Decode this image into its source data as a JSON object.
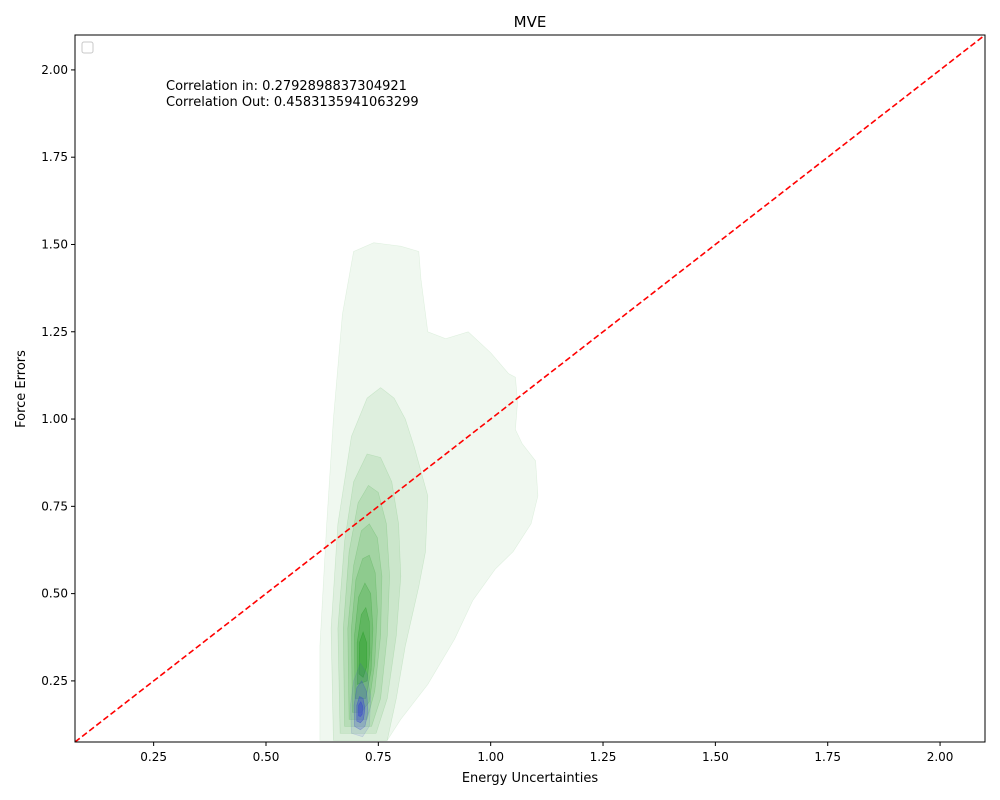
{
  "chart_data": {
    "type": "kde-contour",
    "title": "MVE",
    "xlabel": "Energy Uncertainties",
    "ylabel": "Force Errors",
    "xlim": [
      0.075,
      2.1
    ],
    "ylim": [
      0.075,
      2.1
    ],
    "xticks": [
      0.25,
      0.5,
      0.75,
      1.0,
      1.25,
      1.5,
      1.75,
      2.0
    ],
    "yticks": [
      0.25,
      0.5,
      0.75,
      1.0,
      1.25,
      1.5,
      1.75,
      2.0
    ],
    "xtick_labels": [
      "0.25",
      "0.50",
      "0.75",
      "1.00",
      "1.25",
      "1.50",
      "1.75",
      "2.00"
    ],
    "ytick_labels": [
      "0.25",
      "0.50",
      "0.75",
      "1.00",
      "1.25",
      "1.50",
      "1.75",
      "2.00"
    ],
    "annotations": [
      "Correlation in: 0.2792898837304921",
      "Correlation Out: 0.4583135941063299"
    ],
    "reference_line": {
      "x": [
        0.075,
        2.1
      ],
      "y": [
        0.075,
        2.1
      ],
      "color": "#ff0000",
      "style": "dashed"
    },
    "grid": false,
    "legend": {
      "placement": "top-left",
      "entries": []
    },
    "series": [
      {
        "color": "#2ca02c",
        "levels": [
          {
            "alpha": 0.07,
            "points": [
              [
                0.62,
                0.08
              ],
              [
                0.62,
                0.35
              ],
              [
                0.635,
                0.7
              ],
              [
                0.65,
                1.0
              ],
              [
                0.67,
                1.3
              ],
              [
                0.695,
                1.48
              ],
              [
                0.74,
                1.505
              ],
              [
                0.8,
                1.495
              ],
              [
                0.84,
                1.48
              ],
              [
                0.845,
                1.4
              ],
              [
                0.86,
                1.25
              ],
              [
                0.9,
                1.23
              ],
              [
                0.95,
                1.25
              ],
              [
                1.0,
                1.19
              ],
              [
                1.04,
                1.13
              ],
              [
                1.055,
                1.12
              ],
              [
                1.06,
                1.05
              ],
              [
                1.055,
                0.97
              ],
              [
                1.07,
                0.93
              ],
              [
                1.1,
                0.88
              ],
              [
                1.105,
                0.78
              ],
              [
                1.09,
                0.7
              ],
              [
                1.05,
                0.62
              ],
              [
                1.01,
                0.57
              ],
              [
                0.96,
                0.48
              ],
              [
                0.92,
                0.37
              ],
              [
                0.86,
                0.24
              ],
              [
                0.8,
                0.14
              ],
              [
                0.77,
                0.08
              ]
            ]
          },
          {
            "alpha": 0.09,
            "points": [
              [
                0.65,
                0.08
              ],
              [
                0.645,
                0.4
              ],
              [
                0.66,
                0.7
              ],
              [
                0.69,
                0.95
              ],
              [
                0.725,
                1.06
              ],
              [
                0.755,
                1.09
              ],
              [
                0.785,
                1.06
              ],
              [
                0.81,
                1.0
              ],
              [
                0.83,
                0.92
              ],
              [
                0.86,
                0.78
              ],
              [
                0.855,
                0.62
              ],
              [
                0.84,
                0.52
              ],
              [
                0.81,
                0.35
              ],
              [
                0.79,
                0.2
              ],
              [
                0.77,
                0.08
              ]
            ]
          },
          {
            "alpha": 0.1,
            "points": [
              [
                0.665,
                0.1
              ],
              [
                0.66,
                0.4
              ],
              [
                0.675,
                0.65
              ],
              [
                0.695,
                0.82
              ],
              [
                0.725,
                0.9
              ],
              [
                0.755,
                0.89
              ],
              [
                0.78,
                0.82
              ],
              [
                0.795,
                0.7
              ],
              [
                0.8,
                0.55
              ],
              [
                0.79,
                0.38
              ],
              [
                0.77,
                0.2
              ],
              [
                0.745,
                0.1
              ]
            ]
          },
          {
            "alpha": 0.12,
            "points": [
              [
                0.675,
                0.12
              ],
              [
                0.672,
                0.4
              ],
              [
                0.685,
                0.62
              ],
              [
                0.705,
                0.76
              ],
              [
                0.728,
                0.81
              ],
              [
                0.75,
                0.79
              ],
              [
                0.768,
                0.7
              ],
              [
                0.775,
                0.55
              ],
              [
                0.77,
                0.38
              ],
              [
                0.755,
                0.2
              ],
              [
                0.735,
                0.12
              ]
            ]
          },
          {
            "alpha": 0.14,
            "points": [
              [
                0.685,
                0.14
              ],
              [
                0.682,
                0.4
              ],
              [
                0.695,
                0.58
              ],
              [
                0.712,
                0.68
              ],
              [
                0.73,
                0.7
              ],
              [
                0.748,
                0.66
              ],
              [
                0.758,
                0.55
              ],
              [
                0.755,
                0.38
              ],
              [
                0.742,
                0.22
              ],
              [
                0.725,
                0.14
              ]
            ]
          },
          {
            "alpha": 0.17,
            "points": [
              [
                0.692,
                0.16
              ],
              [
                0.69,
                0.4
              ],
              [
                0.7,
                0.54
              ],
              [
                0.715,
                0.6
              ],
              [
                0.73,
                0.61
              ],
              [
                0.743,
                0.56
              ],
              [
                0.748,
                0.45
              ],
              [
                0.742,
                0.3
              ],
              [
                0.73,
                0.19
              ],
              [
                0.712,
                0.16
              ]
            ]
          },
          {
            "alpha": 0.22,
            "points": [
              [
                0.698,
                0.2
              ],
              [
                0.697,
                0.38
              ],
              [
                0.706,
                0.49
              ],
              [
                0.72,
                0.53
              ],
              [
                0.733,
                0.5
              ],
              [
                0.738,
                0.4
              ],
              [
                0.734,
                0.28
              ],
              [
                0.722,
                0.2
              ]
            ]
          },
          {
            "alpha": 0.3,
            "points": [
              [
                0.703,
                0.24
              ],
              [
                0.703,
                0.36
              ],
              [
                0.712,
                0.44
              ],
              [
                0.722,
                0.46
              ],
              [
                0.73,
                0.42
              ],
              [
                0.731,
                0.33
              ],
              [
                0.725,
                0.25
              ]
            ]
          },
          {
            "alpha": 0.4,
            "points": [
              [
                0.707,
                0.27
              ],
              [
                0.708,
                0.36
              ],
              [
                0.716,
                0.39
              ],
              [
                0.724,
                0.36
              ],
              [
                0.724,
                0.29
              ],
              [
                0.716,
                0.26
              ]
            ]
          }
        ]
      },
      {
        "color": "#3f51c8",
        "levels": [
          {
            "alpha": 0.12,
            "points": [
              [
                0.69,
                0.1
              ],
              [
                0.688,
                0.18
              ],
              [
                0.695,
                0.25
              ],
              [
                0.71,
                0.3
              ],
              [
                0.725,
                0.27
              ],
              [
                0.733,
                0.2
              ],
              [
                0.73,
                0.12
              ],
              [
                0.715,
                0.09
              ]
            ]
          },
          {
            "alpha": 0.25,
            "points": [
              [
                0.697,
                0.12
              ],
              [
                0.696,
                0.18
              ],
              [
                0.702,
                0.23
              ],
              [
                0.713,
                0.25
              ],
              [
                0.724,
                0.22
              ],
              [
                0.727,
                0.16
              ],
              [
                0.72,
                0.12
              ],
              [
                0.71,
                0.11
              ]
            ]
          },
          {
            "alpha": 0.4,
            "points": [
              [
                0.702,
                0.135
              ],
              [
                0.702,
                0.18
              ],
              [
                0.708,
                0.205
              ],
              [
                0.716,
                0.2
              ],
              [
                0.72,
                0.17
              ],
              [
                0.717,
                0.14
              ],
              [
                0.71,
                0.13
              ]
            ]
          },
          {
            "alpha": 0.55,
            "points": [
              [
                0.706,
                0.15
              ],
              [
                0.706,
                0.18
              ],
              [
                0.711,
                0.19
              ],
              [
                0.715,
                0.178
              ],
              [
                0.714,
                0.155
              ],
              [
                0.71,
                0.148
              ]
            ]
          }
        ]
      }
    ]
  }
}
